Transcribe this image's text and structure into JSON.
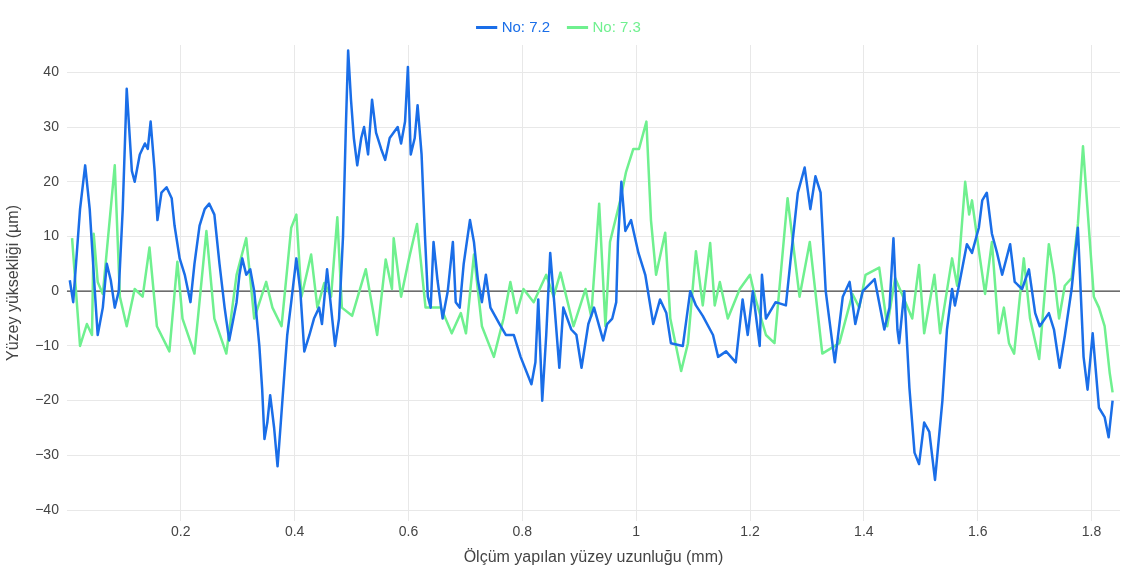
{
  "chart_data": {
    "type": "line",
    "xlabel": "Ölçüm yapılan yüzey uzunluğu (mm)",
    "ylabel": "Yüzey yüksekliği (µm)",
    "xlim": [
      0,
      1.85
    ],
    "xticks": [
      0.2,
      0.4,
      0.6,
      0.8,
      1,
      1.2,
      1.4,
      1.6,
      1.8
    ],
    "ylim": [
      -42,
      45
    ],
    "yticks": [
      -40,
      -30,
      -20,
      -10,
      0,
      10,
      20,
      30,
      40
    ],
    "grid": true,
    "legend": "top",
    "marker": "none",
    "line_style": "solid",
    "ref_lines": [
      {
        "axis": "y",
        "value": 0,
        "color": "#444444"
      }
    ],
    "series": [
      {
        "name": "No: 7.2",
        "color": "#1a6ee8",
        "x": [
          0.005,
          0.011,
          0.023,
          0.032,
          0.04,
          0.049,
          0.054,
          0.063,
          0.07,
          0.077,
          0.084,
          0.091,
          0.098,
          0.105,
          0.114,
          0.119,
          0.128,
          0.137,
          0.142,
          0.147,
          0.154,
          0.159,
          0.166,
          0.175,
          0.184,
          0.189,
          0.198,
          0.207,
          0.217,
          0.224,
          0.233,
          0.242,
          0.25,
          0.259,
          0.268,
          0.277,
          0.285,
          0.298,
          0.303,
          0.308,
          0.315,
          0.322,
          0.329,
          0.338,
          0.343,
          0.347,
          0.352,
          0.357,
          0.364,
          0.37,
          0.375,
          0.382,
          0.387,
          0.394,
          0.403,
          0.41,
          0.417,
          0.426,
          0.434,
          0.443,
          0.448,
          0.457,
          0.464,
          0.471,
          0.478,
          0.485,
          0.49,
          0.494,
          0.499,
          0.504,
          0.51,
          0.517,
          0.522,
          0.529,
          0.536,
          0.543,
          0.552,
          0.559,
          0.567,
          0.574,
          0.581,
          0.587,
          0.594,
          0.599,
          0.604,
          0.611,
          0.616,
          0.623,
          0.629,
          0.634,
          0.639,
          0.644,
          0.651,
          0.66,
          0.669,
          0.678,
          0.683,
          0.69,
          0.697,
          0.708,
          0.715,
          0.722,
          0.729,
          0.736,
          0.744,
          0.76,
          0.771,
          0.785,
          0.797,
          0.816,
          0.823,
          0.828,
          0.835,
          0.842,
          0.849,
          0.856,
          0.865,
          0.872,
          0.886,
          0.895,
          0.904,
          0.916,
          0.926,
          0.942,
          0.949,
          0.958,
          0.965,
          0.968,
          0.974,
          0.981,
          0.991,
          1.004,
          1.016,
          1.03,
          1.042,
          1.053,
          1.061,
          1.082,
          1.095,
          1.105,
          1.117,
          1.135,
          1.144,
          1.158,
          1.175,
          1.187,
          1.196,
          1.205,
          1.217,
          1.221,
          1.228,
          1.245,
          1.263,
          1.271,
          1.284,
          1.296,
          1.306,
          1.315,
          1.324,
          1.333,
          1.349,
          1.363,
          1.375,
          1.385,
          1.398,
          1.419,
          1.436,
          1.445,
          1.452,
          1.459,
          1.462,
          1.471,
          1.48,
          1.489,
          1.497,
          1.506,
          1.515,
          1.525,
          1.538,
          1.546,
          1.555,
          1.56,
          1.567,
          1.581,
          1.59,
          1.602,
          1.608,
          1.616,
          1.625,
          1.634,
          1.643,
          1.657,
          1.665,
          1.678,
          1.69,
          1.701,
          1.709,
          1.725,
          1.734,
          1.744,
          1.753,
          1.765,
          1.776,
          1.786,
          1.793,
          1.802,
          1.813,
          1.823,
          1.83,
          1.837
        ],
        "values": [
          2,
          -2,
          15,
          23,
          15,
          0,
          -8,
          -3,
          5,
          2,
          -3,
          0,
          15,
          37,
          22,
          20,
          25,
          27,
          26,
          31,
          22,
          13,
          18,
          19,
          17,
          12,
          6,
          3,
          -2,
          5,
          12,
          15,
          16,
          14,
          5,
          -3,
          -9,
          -2,
          3,
          6,
          3,
          4,
          0,
          -10,
          -18,
          -27,
          -24,
          -19,
          -25,
          -32,
          -25,
          -15,
          -8,
          -2,
          6,
          0,
          -11,
          -8,
          -5,
          -3,
          -6,
          4,
          -3,
          -10,
          -5,
          10,
          30,
          44,
          35,
          28,
          23,
          28,
          30,
          25,
          35,
          29,
          26,
          24,
          28,
          29,
          30,
          27,
          31,
          41,
          25,
          28,
          34,
          25,
          10,
          -1,
          -3,
          9,
          2,
          -5,
          0,
          9,
          -2,
          -3,
          5,
          13,
          9,
          2,
          -2,
          3,
          -3,
          -6,
          -8,
          -8,
          -12,
          -17,
          -13,
          -1.5,
          -20,
          -8,
          7,
          -2,
          -14,
          -3,
          -7,
          -8,
          -14,
          -6,
          -3,
          -9,
          -6,
          -5,
          -2,
          9,
          20,
          11,
          13,
          7,
          3,
          -6,
          -1.5,
          -4,
          -9.5,
          -10,
          0,
          -2.6,
          -4.5,
          -8,
          -12,
          -11,
          -13,
          -1.5,
          -8,
          0,
          -10,
          3,
          -5,
          -2,
          -2.6,
          5.4,
          18,
          22.6,
          15,
          21,
          18,
          0,
          -13,
          -1,
          1.7,
          -6,
          0,
          2.2,
          -7,
          -3,
          9.7,
          -7,
          -9.5,
          0,
          -17.6,
          -29.5,
          -31.6,
          -24,
          -25.7,
          -34.5,
          -20,
          -7,
          0.4,
          -2.6,
          1,
          8.6,
          7,
          11.6,
          16.6,
          18,
          10.5,
          7,
          3,
          8.6,
          1.7,
          0.4,
          4,
          -4,
          -6.4,
          -4,
          -7,
          -14,
          -8.2,
          0.4,
          11.6,
          -12,
          -18,
          -7.7,
          -21.3,
          -23,
          -26.7,
          -20
        ]
      },
      {
        "name": "No: 7.3",
        "color": "#6ff08f",
        "x": [
          0.009,
          0.023,
          0.035,
          0.044,
          0.047,
          0.054,
          0.063,
          0.084,
          0.093,
          0.105,
          0.119,
          0.133,
          0.145,
          0.158,
          0.18,
          0.194,
          0.203,
          0.224,
          0.245,
          0.259,
          0.28,
          0.298,
          0.315,
          0.329,
          0.35,
          0.361,
          0.377,
          0.394,
          0.403,
          0.412,
          0.429,
          0.44,
          0.452,
          0.464,
          0.475,
          0.483,
          0.501,
          0.525,
          0.545,
          0.56,
          0.571,
          0.574,
          0.587,
          0.601,
          0.615,
          0.63,
          0.657,
          0.676,
          0.692,
          0.701,
          0.715,
          0.729,
          0.75,
          0.767,
          0.779,
          0.79,
          0.802,
          0.82,
          0.842,
          0.855,
          0.867,
          0.89,
          0.911,
          0.921,
          0.935,
          0.946,
          0.954,
          0.972,
          0.982,
          0.995,
          1.005,
          1.018,
          1.026,
          1.035,
          1.051,
          1.06,
          1.079,
          1.091,
          1.105,
          1.117,
          1.13,
          1.138,
          1.147,
          1.161,
          1.182,
          1.2,
          1.21,
          1.228,
          1.243,
          1.266,
          1.287,
          1.305,
          1.327,
          1.357,
          1.38,
          1.392,
          1.403,
          1.427,
          1.441,
          1.455,
          1.485,
          1.497,
          1.506,
          1.524,
          1.534,
          1.555,
          1.564,
          1.578,
          1.585,
          1.59,
          1.604,
          1.613,
          1.625,
          1.637,
          1.646,
          1.655,
          1.664,
          1.681,
          1.692,
          1.708,
          1.725,
          1.734,
          1.743,
          1.753,
          1.765,
          1.776,
          1.785,
          1.804,
          1.813,
          1.823,
          1.832,
          1.837
        ],
        "values": [
          9.7,
          -10,
          -6,
          -8,
          10.5,
          1.7,
          -0.5,
          23,
          -1,
          -6.4,
          0.4,
          -1,
          8,
          -6.4,
          -11,
          5.4,
          -5,
          -11.4,
          11,
          -5,
          -11.4,
          3,
          9.7,
          -5,
          1.7,
          -3,
          -6.4,
          11.6,
          14,
          -1,
          6.7,
          -3,
          1.5,
          -1,
          13.5,
          -3,
          -4.5,
          4,
          -8,
          5.8,
          0.4,
          9.7,
          -1,
          6,
          12.3,
          -3,
          -3,
          -7.7,
          -4,
          -7.7,
          6.7,
          -6.4,
          -12,
          -5,
          1.7,
          -4,
          0.4,
          -2,
          3,
          -1,
          3.4,
          -6.4,
          0.4,
          -4.6,
          16,
          -6.4,
          9,
          16.6,
          21.7,
          26,
          26,
          31,
          13,
          3,
          10.7,
          -5,
          -14.6,
          -9.5,
          7.3,
          -2.6,
          8.8,
          -2.6,
          1.7,
          -5,
          0.4,
          3,
          -1.5,
          -8,
          -9.5,
          17,
          -1,
          9,
          -11.4,
          -9.5,
          -0.5,
          -3,
          3,
          4.3,
          -6.4,
          2.4,
          -5,
          4.8,
          -7.7,
          3,
          -7.7,
          6,
          1,
          20,
          14,
          16.6,
          6,
          -0.5,
          9,
          -7.7,
          -3,
          -9.5,
          -11.4,
          6,
          -5,
          -12.4,
          8.6,
          3,
          -5,
          1,
          2.4,
          12.3,
          26.5,
          -1,
          -3,
          -6.4,
          -15,
          -18.5
        ]
      }
    ]
  }
}
